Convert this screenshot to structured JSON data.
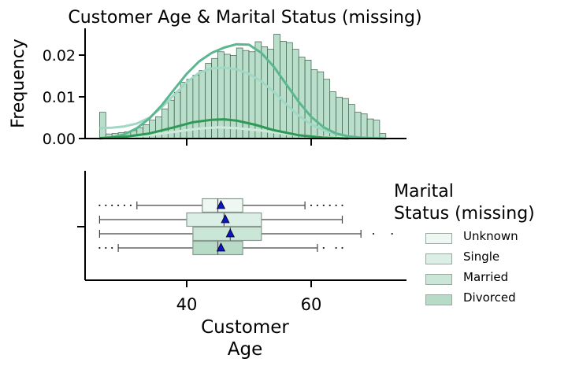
{
  "chart_data": [
    {
      "type": "histogram",
      "title": "Customer Age & Marital Status (missing)",
      "ylabel": "Frequency",
      "xlim": [
        24,
        74
      ],
      "ylim": [
        0,
        0.026
      ],
      "yticks": [
        0.0,
        0.01,
        0.02
      ],
      "ytick_labels": [
        "0.00",
        "0.01",
        "0.02"
      ],
      "xticks": [
        40,
        60
      ],
      "grid": false,
      "series": [
        {
          "name": "Unknown",
          "color": "#eaf5ef",
          "line_color": "#cfe9dc",
          "kde_x": [
            26,
            30,
            34,
            38,
            42,
            45,
            48,
            52,
            56,
            60,
            64,
            67
          ],
          "kde_y": [
            0.0001,
            0.0003,
            0.0008,
            0.0016,
            0.0024,
            0.0027,
            0.0025,
            0.0019,
            0.0011,
            0.0005,
            0.0002,
            0.0001
          ]
        },
        {
          "name": "Single",
          "color": "#cde9dc",
          "line_color": "#9fd8c4",
          "kde_x": [
            26,
            28,
            30,
            32,
            34,
            36,
            38,
            40,
            42,
            44,
            46,
            48,
            50,
            52,
            54,
            56,
            58,
            60,
            62,
            64,
            66,
            68
          ],
          "kde_y": [
            0.0025,
            0.0026,
            0.0029,
            0.0036,
            0.005,
            0.0075,
            0.0105,
            0.0135,
            0.0158,
            0.0168,
            0.017,
            0.0166,
            0.0155,
            0.0137,
            0.0112,
            0.0082,
            0.0055,
            0.0034,
            0.002,
            0.0011,
            0.0005,
            0.0002
          ]
        },
        {
          "name": "Married",
          "color": "#b7dfc9",
          "line_color": "#5bb78f",
          "kde_x": [
            26,
            28,
            30,
            32,
            34,
            36,
            38,
            40,
            42,
            44,
            46,
            48,
            50,
            52,
            54,
            56,
            58,
            60,
            62,
            64,
            66,
            68,
            70,
            72
          ],
          "kde_y": [
            0.0,
            0.0003,
            0.001,
            0.0025,
            0.0048,
            0.008,
            0.0118,
            0.0155,
            0.0185,
            0.0205,
            0.0218,
            0.0226,
            0.0225,
            0.0205,
            0.0172,
            0.013,
            0.0088,
            0.0052,
            0.0027,
            0.0012,
            0.0005,
            0.0002,
            0.0001,
            0.0
          ]
        },
        {
          "name": "Divorced",
          "color": "#a5d4bb",
          "line_color": "#2d9a55",
          "kde_x": [
            26,
            30,
            34,
            38,
            41,
            44,
            46,
            48,
            51,
            54,
            58,
            62,
            66
          ],
          "kde_y": [
            0.0001,
            0.0004,
            0.0012,
            0.0027,
            0.0039,
            0.0045,
            0.0046,
            0.0043,
            0.0033,
            0.002,
            0.0008,
            0.0002,
            0.0
          ]
        }
      ],
      "hist_bins_start": 26,
      "hist_bin_width": 1,
      "hist_heights": [
        0.0063,
        0.0011,
        0.0012,
        0.0014,
        0.0016,
        0.0019,
        0.0026,
        0.0033,
        0.0044,
        0.0052,
        0.0071,
        0.0092,
        0.0111,
        0.0135,
        0.0142,
        0.0152,
        0.0163,
        0.018,
        0.0192,
        0.0208,
        0.0202,
        0.0199,
        0.0217,
        0.0211,
        0.0208,
        0.0232,
        0.022,
        0.0214,
        0.025,
        0.0233,
        0.023,
        0.0214,
        0.0195,
        0.0188,
        0.0165,
        0.016,
        0.0142,
        0.0112,
        0.0099,
        0.0096,
        0.0082,
        0.0063,
        0.0059,
        0.0047,
        0.0044,
        0.0012
      ]
    },
    {
      "type": "boxplot",
      "xlabel": "Customer\nAge",
      "xlim": [
        24,
        74
      ],
      "xticks": [
        40,
        60
      ],
      "xtick_labels": [
        "40",
        "60"
      ],
      "boxes": [
        {
          "name": "Unknown",
          "color": "#eef7f2",
          "whislo": 32,
          "q1": 42.5,
          "median": 45,
          "q3": 49,
          "whishi": 59,
          "mean": 45.5,
          "fliers": [
            26,
            27,
            28,
            29,
            30,
            31,
            60,
            61,
            62,
            63,
            64,
            65
          ]
        },
        {
          "name": "Single",
          "color": "#dbefe6",
          "whislo": 26,
          "q1": 40,
          "median": 46,
          "q3": 52,
          "whishi": 65,
          "mean": 46.2,
          "fliers": []
        },
        {
          "name": "Married",
          "color": "#c9e6d6",
          "whislo": 26,
          "q1": 41,
          "median": 47,
          "q3": 52,
          "whishi": 68,
          "mean": 47,
          "fliers": [
            70,
            73
          ]
        },
        {
          "name": "Divorced",
          "color": "#b8dbc7",
          "whislo": 29,
          "q1": 41,
          "median": 45,
          "q3": 49,
          "whishi": 61,
          "mean": 45.5,
          "fliers": [
            26,
            27,
            28,
            62,
            64,
            65
          ]
        }
      ]
    }
  ],
  "legend": {
    "title_line1": "Marital",
    "title_line2": "Status (missing)",
    "items": [
      {
        "label": "Unknown",
        "color": "#eef7f2"
      },
      {
        "label": "Single",
        "color": "#dbefe6"
      },
      {
        "label": "Married",
        "color": "#c9e6d6"
      },
      {
        "label": "Divorced",
        "color": "#b8dbc7"
      }
    ]
  }
}
